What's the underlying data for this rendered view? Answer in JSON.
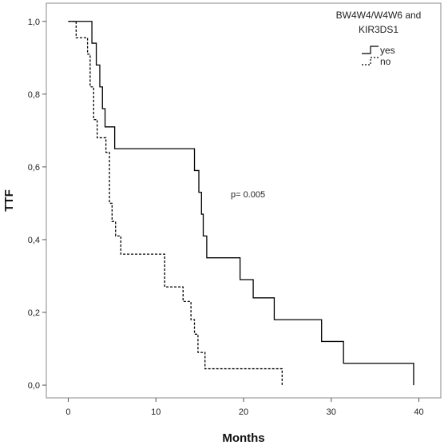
{
  "chart_data": {
    "type": "line",
    "xlabel": "Months",
    "ylabel": "TTF",
    "xlim": [
      -2.5,
      42.5
    ],
    "ylim": [
      -0.035,
      1.05
    ],
    "x_ticks": [
      0,
      10,
      20,
      30,
      40
    ],
    "x_tick_labels": [
      "0",
      "10",
      "20",
      "30",
      "40"
    ],
    "y_ticks": [
      0.0,
      0.2,
      0.4,
      0.6,
      0.8,
      1.0
    ],
    "y_tick_labels": [
      "0,0",
      "0,2",
      "0,4",
      "0,6",
      "0,8",
      "1,0"
    ],
    "grid": false,
    "legend_position": "top-right",
    "legend_title": "BW4W4/W4W6 and KIR3DS1",
    "annotation": "p= 0.005",
    "series": [
      {
        "name": "yes",
        "style": "solid",
        "color": "#000000",
        "x": [
          0,
          2.7,
          3.2,
          3.6,
          3.9,
          4.2,
          5.3,
          14.4,
          14.9,
          15.2,
          15.4,
          15.8,
          16.4,
          19.6,
          21.1,
          23.5,
          28.9,
          31.4,
          39.4,
          39.4
        ],
        "y": [
          1.0,
          0.94,
          0.88,
          0.82,
          0.76,
          0.71,
          0.65,
          0.59,
          0.53,
          0.47,
          0.41,
          0.35,
          0.35,
          0.29,
          0.24,
          0.18,
          0.12,
          0.06,
          0.06,
          0.0
        ]
      },
      {
        "name": "no",
        "style": "dashed",
        "color": "#000000",
        "x": [
          0,
          0.9,
          2.2,
          2.5,
          2.9,
          3.3,
          4.3,
          4.7,
          5.0,
          5.4,
          6.0,
          11.0,
          13.1,
          14.0,
          14.4,
          14.8,
          15.2,
          15.6,
          24.4,
          24.4
        ],
        "y": [
          1.0,
          0.955,
          0.91,
          0.82,
          0.73,
          0.68,
          0.64,
          0.5,
          0.45,
          0.41,
          0.36,
          0.27,
          0.23,
          0.18,
          0.14,
          0.09,
          0.09,
          0.045,
          0.045,
          0.0
        ]
      }
    ]
  }
}
